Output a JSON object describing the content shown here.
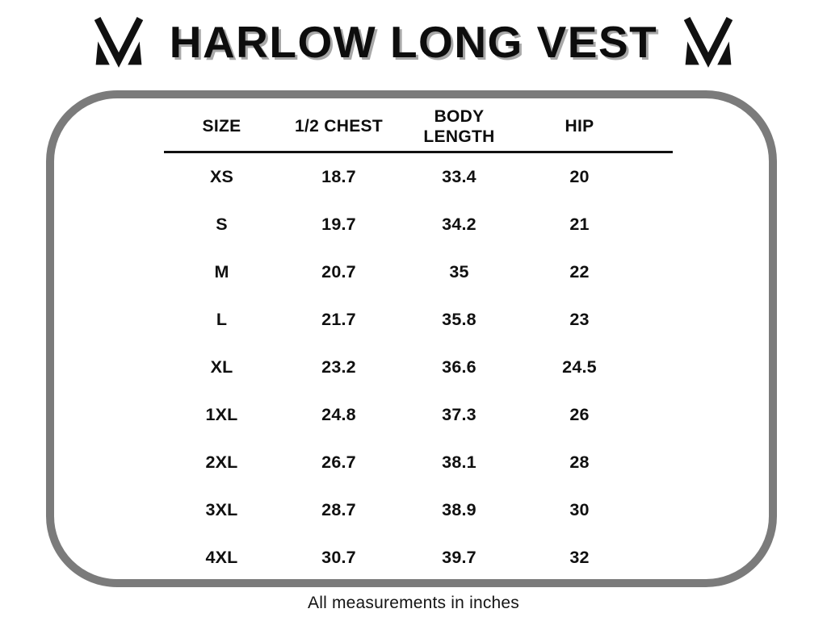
{
  "header": {
    "title": "HARLOW LONG VEST",
    "logo": "m-monogram"
  },
  "size_chart": {
    "columns": [
      "SIZE",
      "1/2 CHEST",
      "BODY LENGTH",
      "HIP"
    ],
    "rows": [
      {
        "size": "XS",
        "half_chest": "18.7",
        "body_length": "33.4",
        "hip": "20"
      },
      {
        "size": "S",
        "half_chest": "19.7",
        "body_length": "34.2",
        "hip": "21"
      },
      {
        "size": "M",
        "half_chest": "20.7",
        "body_length": "35",
        "hip": "22"
      },
      {
        "size": "L",
        "half_chest": "21.7",
        "body_length": "35.8",
        "hip": "23"
      },
      {
        "size": "XL",
        "half_chest": "23.2",
        "body_length": "36.6",
        "hip": "24.5"
      },
      {
        "size": "1XL",
        "half_chest": "24.8",
        "body_length": "37.3",
        "hip": "26"
      },
      {
        "size": "2XL",
        "half_chest": "26.7",
        "body_length": "38.1",
        "hip": "28"
      },
      {
        "size": "3XL",
        "half_chest": "28.7",
        "body_length": "38.9",
        "hip": "30"
      },
      {
        "size": "4XL",
        "half_chest": "30.7",
        "body_length": "39.7",
        "hip": "32"
      }
    ]
  },
  "footer": {
    "note": "All measurements in inches"
  },
  "colors": {
    "text": "#0d0d0d",
    "frame_border": "#7b7b7b",
    "title_shadow": "#a8a8a8",
    "background": "#ffffff"
  }
}
